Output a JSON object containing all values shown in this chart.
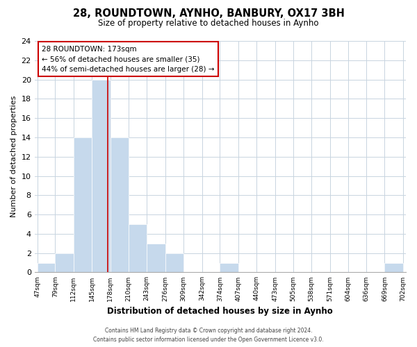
{
  "title": "28, ROUNDTOWN, AYNHO, BANBURY, OX17 3BH",
  "subtitle": "Size of property relative to detached houses in Aynho",
  "xlabel": "Distribution of detached houses by size in Aynho",
  "ylabel": "Number of detached properties",
  "bin_edges": [
    47,
    79,
    112,
    145,
    178,
    210,
    243,
    276,
    309,
    342,
    374,
    407,
    440,
    473,
    505,
    538,
    571,
    604,
    636,
    669,
    702
  ],
  "bin_labels": [
    "47sqm",
    "79sqm",
    "112sqm",
    "145sqm",
    "178sqm",
    "210sqm",
    "243sqm",
    "276sqm",
    "309sqm",
    "342sqm",
    "374sqm",
    "407sqm",
    "440sqm",
    "473sqm",
    "505sqm",
    "538sqm",
    "571sqm",
    "604sqm",
    "636sqm",
    "669sqm",
    "702sqm"
  ],
  "counts": [
    1,
    2,
    14,
    20,
    14,
    5,
    3,
    2,
    0,
    0,
    1,
    0,
    0,
    0,
    0,
    0,
    0,
    0,
    0,
    1
  ],
  "bar_color": "#c6d9ec",
  "subject_value": 173,
  "subject_line_color": "#cc0000",
  "annotation_title": "28 ROUNDTOWN: 173sqm",
  "annotation_line1": "← 56% of detached houses are smaller (35)",
  "annotation_line2": "44% of semi-detached houses are larger (28) →",
  "annotation_box_edge": "#cc0000",
  "ylim": [
    0,
    24
  ],
  "yticks": [
    0,
    2,
    4,
    6,
    8,
    10,
    12,
    14,
    16,
    18,
    20,
    22,
    24
  ],
  "footer_line1": "Contains HM Land Registry data © Crown copyright and database right 2024.",
  "footer_line2": "Contains public sector information licensed under the Open Government Licence v3.0.",
  "background_color": "#ffffff",
  "grid_color": "#c8d4e0"
}
